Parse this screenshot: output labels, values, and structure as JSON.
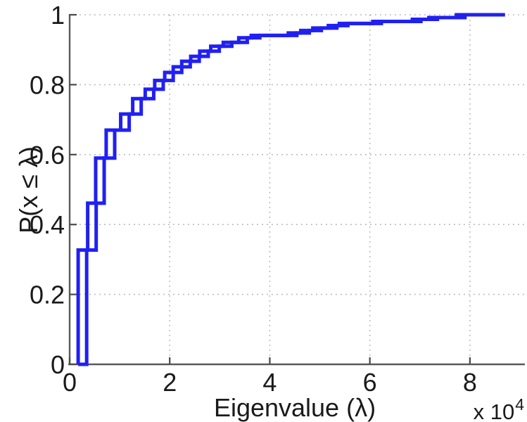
{
  "figure": {
    "background": "#ffffff"
  },
  "chart_data": {
    "type": "line",
    "subtype": "empirical-cdf-stairs",
    "title": "",
    "xlabel": "Eigenvalue (λ)",
    "ylabel": "P(x ≤ λ)",
    "x_axis_multiplier": "x 10",
    "x_axis_multiplier_exponent": "4",
    "x_unit_scale": 10000,
    "xlim": [
      0,
      9
    ],
    "ylim": [
      0,
      1
    ],
    "xticks": [
      0,
      2,
      4,
      6,
      8
    ],
    "xtick_labels": [
      "0",
      "2",
      "4",
      "6",
      "8"
    ],
    "yticks": [
      0,
      0.2,
      0.4,
      0.6,
      0.8,
      1
    ],
    "ytick_labels": [
      "0",
      "0.2",
      "0.4",
      "0.6",
      "0.8",
      "1"
    ],
    "grid": true,
    "legend": null,
    "line_color": "#2020f2",
    "line_width": 5,
    "series": [
      {
        "name": "ecdf-curve-a",
        "start_x": 0.17,
        "end_x": 8.7,
        "steps": [
          [
            0.17,
            0.327
          ],
          [
            0.36,
            0.461
          ],
          [
            0.52,
            0.59
          ],
          [
            0.73,
            0.67
          ],
          [
            1.02,
            0.716
          ],
          [
            1.26,
            0.76
          ],
          [
            1.51,
            0.787
          ],
          [
            1.7,
            0.812
          ],
          [
            1.9,
            0.835
          ],
          [
            2.07,
            0.851
          ],
          [
            2.24,
            0.867
          ],
          [
            2.42,
            0.881
          ],
          [
            2.6,
            0.896
          ],
          [
            2.82,
            0.91
          ],
          [
            3.07,
            0.921
          ],
          [
            3.38,
            0.934
          ],
          [
            3.63,
            0.941
          ],
          [
            4.37,
            0.948
          ],
          [
            4.62,
            0.955
          ],
          [
            4.86,
            0.962
          ],
          [
            5.17,
            0.969
          ],
          [
            5.39,
            0.975
          ],
          [
            6.06,
            0.981
          ],
          [
            6.85,
            0.987
          ],
          [
            7.18,
            0.992
          ],
          [
            7.73,
            1.0
          ]
        ]
      },
      {
        "name": "ecdf-curve-b",
        "start_x": 0.17,
        "end_x": 8.7,
        "steps": [
          [
            0.34,
            0.327
          ],
          [
            0.53,
            0.461
          ],
          [
            0.69,
            0.59
          ],
          [
            0.9,
            0.67
          ],
          [
            1.19,
            0.716
          ],
          [
            1.43,
            0.76
          ],
          [
            1.68,
            0.787
          ],
          [
            1.87,
            0.812
          ],
          [
            2.07,
            0.835
          ],
          [
            2.24,
            0.851
          ],
          [
            2.41,
            0.867
          ],
          [
            2.59,
            0.881
          ],
          [
            2.77,
            0.896
          ],
          [
            2.99,
            0.91
          ],
          [
            3.24,
            0.921
          ],
          [
            3.55,
            0.934
          ],
          [
            3.8,
            0.941
          ],
          [
            4.54,
            0.948
          ],
          [
            4.79,
            0.955
          ],
          [
            5.03,
            0.962
          ],
          [
            5.34,
            0.969
          ],
          [
            5.56,
            0.975
          ],
          [
            6.23,
            0.981
          ],
          [
            7.02,
            0.987
          ],
          [
            7.35,
            0.992
          ],
          [
            7.9,
            1.0
          ]
        ]
      }
    ],
    "colors": {
      "axis": "#5a5a5a",
      "tick": "#4a4a4a",
      "grid": "#b5b5b5",
      "text": "#1a1a1a"
    }
  }
}
